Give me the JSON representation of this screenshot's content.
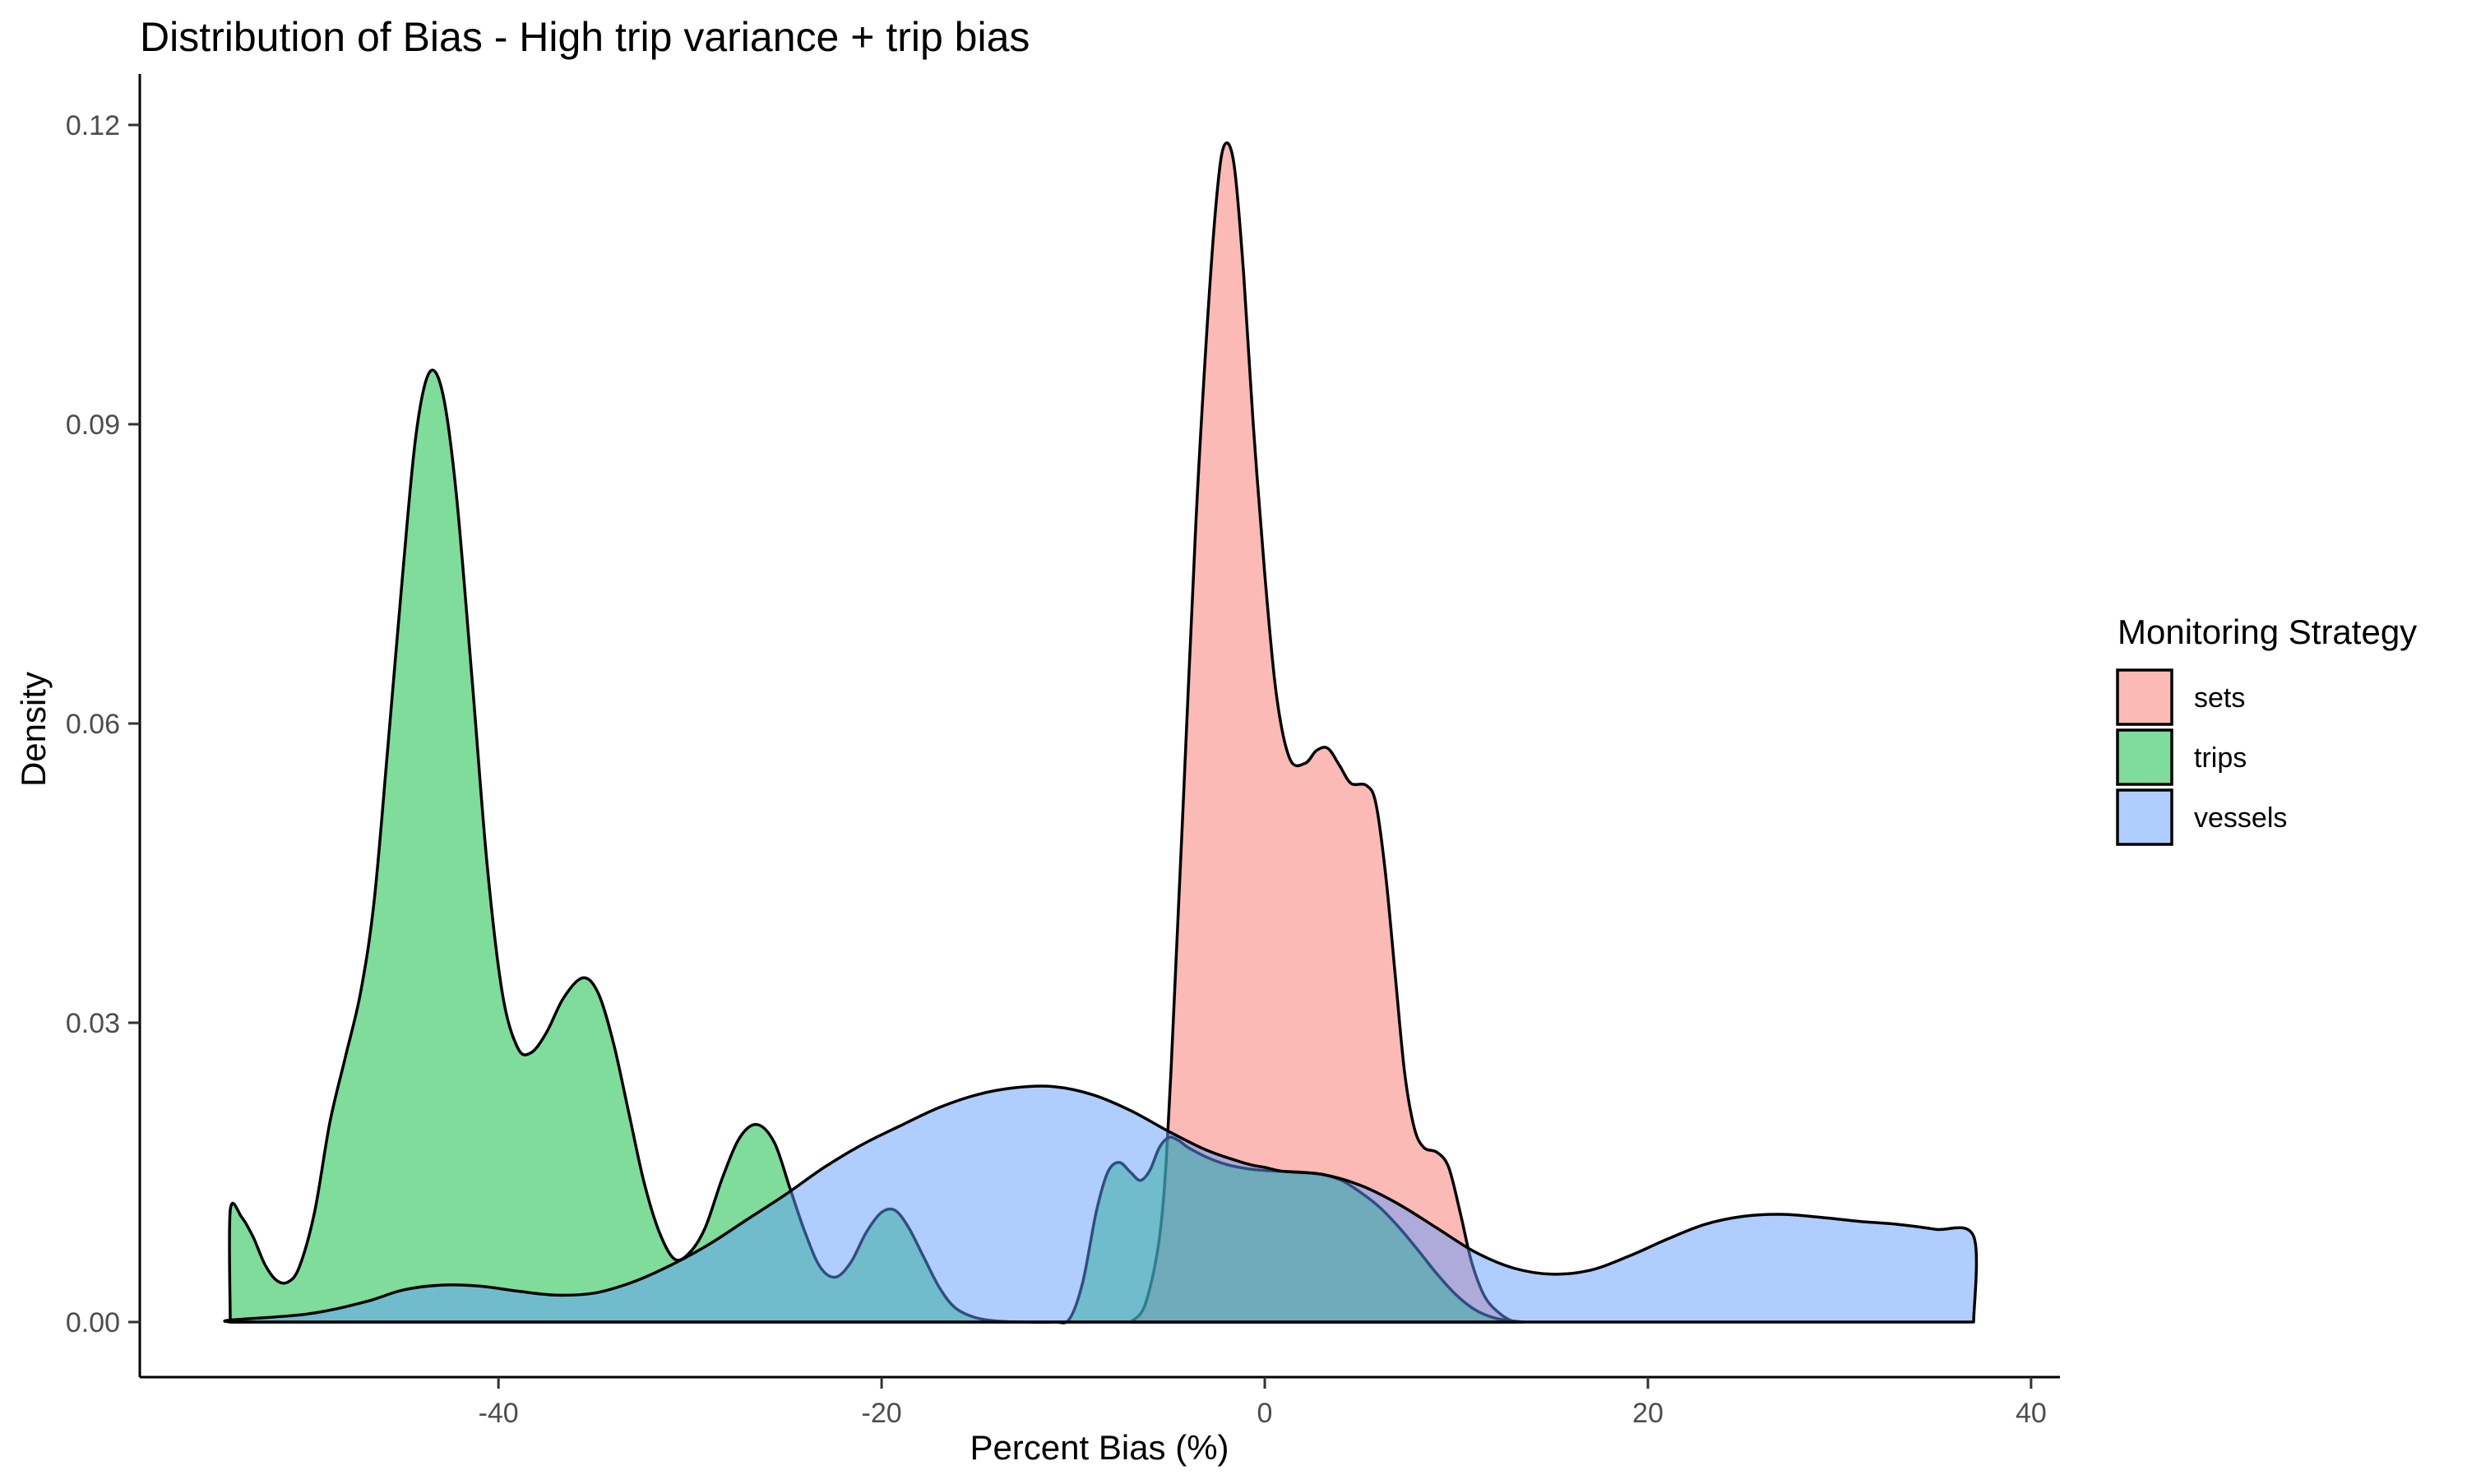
{
  "chart_data": {
    "type": "area",
    "title": "Distribution of Bias - High trip variance + trip bias",
    "xlabel": "Percent Bias (%)",
    "ylabel": "Density",
    "xlim": [
      -54,
      37
    ],
    "ylim": [
      0,
      0.12
    ],
    "x_ticks": [
      -40,
      -20,
      0,
      20,
      40
    ],
    "y_ticks": [
      0.0,
      0.03,
      0.06,
      0.09,
      0.12
    ],
    "x_tick_labels": [
      "-40",
      "-20",
      "0",
      "20",
      "40"
    ],
    "y_tick_labels": [
      "0.00",
      "0.03",
      "0.06",
      "0.09",
      "0.12"
    ],
    "grid": false,
    "legend_title": "Monitoring Strategy",
    "legend_position": "right",
    "series": [
      {
        "name": "sets",
        "color": "#F8766D",
        "points": [
          [
            -7.0,
            0.0
          ],
          [
            -6.2,
            0.002
          ],
          [
            -5.4,
            0.01
          ],
          [
            -4.9,
            0.025
          ],
          [
            -4.3,
            0.05
          ],
          [
            -3.6,
            0.08
          ],
          [
            -3.0,
            0.1
          ],
          [
            -2.5,
            0.113
          ],
          [
            -2.1,
            0.118
          ],
          [
            -1.6,
            0.116
          ],
          [
            -1.1,
            0.105
          ],
          [
            -0.6,
            0.09
          ],
          [
            0,
            0.075
          ],
          [
            0.6,
            0.063
          ],
          [
            1.3,
            0.0565
          ],
          [
            2.1,
            0.056
          ],
          [
            2.7,
            0.0573
          ],
          [
            3.3,
            0.0575
          ],
          [
            3.9,
            0.0558
          ],
          [
            4.5,
            0.054
          ],
          [
            5.3,
            0.0538
          ],
          [
            5.8,
            0.052
          ],
          [
            6.3,
            0.045
          ],
          [
            6.8,
            0.035
          ],
          [
            7.3,
            0.025
          ],
          [
            7.8,
            0.0195
          ],
          [
            8.3,
            0.0175
          ],
          [
            9.0,
            0.017
          ],
          [
            9.6,
            0.0155
          ],
          [
            10.2,
            0.011
          ],
          [
            10.8,
            0.006
          ],
          [
            11.5,
            0.0025
          ],
          [
            12.3,
            0.0008
          ],
          [
            13.0,
            0.0
          ]
        ]
      },
      {
        "name": "trips",
        "color": "#00BA38",
        "points": [
          [
            -54,
            0.0
          ],
          [
            -54,
            0.0112
          ],
          [
            -53.4,
            0.0105
          ],
          [
            -52.8,
            0.0085
          ],
          [
            -52.2,
            0.0058
          ],
          [
            -51.6,
            0.0042
          ],
          [
            -51.0,
            0.004
          ],
          [
            -50.4,
            0.0055
          ],
          [
            -49.6,
            0.011
          ],
          [
            -48.8,
            0.02
          ],
          [
            -48.0,
            0.0265
          ],
          [
            -47.2,
            0.033
          ],
          [
            -46.5,
            0.042
          ],
          [
            -45.8,
            0.057
          ],
          [
            -45.0,
            0.075
          ],
          [
            -44.3,
            0.089
          ],
          [
            -43.6,
            0.0952
          ],
          [
            -42.9,
            0.093
          ],
          [
            -42.2,
            0.083
          ],
          [
            -41.4,
            0.065
          ],
          [
            -40.6,
            0.046
          ],
          [
            -39.8,
            0.033
          ],
          [
            -39.0,
            0.0275
          ],
          [
            -38.3,
            0.027
          ],
          [
            -37.5,
            0.029
          ],
          [
            -36.6,
            0.0325
          ],
          [
            -35.6,
            0.0345
          ],
          [
            -34.8,
            0.033
          ],
          [
            -34.0,
            0.028
          ],
          [
            -33.2,
            0.021
          ],
          [
            -32.4,
            0.014
          ],
          [
            -31.6,
            0.009
          ],
          [
            -30.8,
            0.0063
          ],
          [
            -30.0,
            0.007
          ],
          [
            -29.2,
            0.0095
          ],
          [
            -28.3,
            0.0145
          ],
          [
            -27.4,
            0.0185
          ],
          [
            -26.5,
            0.0198
          ],
          [
            -25.6,
            0.018
          ],
          [
            -24.8,
            0.0135
          ],
          [
            -24.0,
            0.009
          ],
          [
            -23.2,
            0.0055
          ],
          [
            -22.4,
            0.0045
          ],
          [
            -21.6,
            0.006
          ],
          [
            -20.8,
            0.009
          ],
          [
            -20.0,
            0.011
          ],
          [
            -19.3,
            0.0112
          ],
          [
            -18.6,
            0.0095
          ],
          [
            -17.8,
            0.0065
          ],
          [
            -17.0,
            0.0035
          ],
          [
            -16.2,
            0.0015
          ],
          [
            -15.2,
            0.0005
          ],
          [
            -14.0,
            0.0001
          ],
          [
            -12.5,
            0.0
          ],
          [
            -11.0,
            0.0
          ],
          [
            -10.2,
            0.0003
          ],
          [
            -9.5,
            0.004
          ],
          [
            -8.8,
            0.011
          ],
          [
            -8.2,
            0.015
          ],
          [
            -7.6,
            0.016
          ],
          [
            -7.0,
            0.015
          ],
          [
            -6.5,
            0.0142
          ],
          [
            -6.0,
            0.0152
          ],
          [
            -5.5,
            0.0175
          ],
          [
            -5.0,
            0.0185
          ],
          [
            -4.5,
            0.0182
          ],
          [
            -4.0,
            0.0175
          ],
          [
            -3.0,
            0.0165
          ],
          [
            -2.0,
            0.0158
          ],
          [
            -1.0,
            0.0154
          ],
          [
            0,
            0.0152
          ],
          [
            1.0,
            0.0151
          ],
          [
            2.0,
            0.015
          ],
          [
            3.0,
            0.0148
          ],
          [
            4.0,
            0.0142
          ],
          [
            5.0,
            0.013
          ],
          [
            6.0,
            0.0115
          ],
          [
            7.0,
            0.0095
          ],
          [
            8.0,
            0.0072
          ],
          [
            9.0,
            0.0048
          ],
          [
            10.0,
            0.0027
          ],
          [
            11.0,
            0.0012
          ],
          [
            12.0,
            0.0004
          ],
          [
            13.0,
            0.0001
          ],
          [
            13.5,
            0.0
          ]
        ]
      },
      {
        "name": "vessels",
        "color": "#619CFF",
        "points": [
          [
            -54,
            0.0
          ],
          [
            -54,
            0.0002
          ],
          [
            -50,
            0.0008
          ],
          [
            -47,
            0.002
          ],
          [
            -45,
            0.0032
          ],
          [
            -43,
            0.0037
          ],
          [
            -41,
            0.0036
          ],
          [
            -39,
            0.0031
          ],
          [
            -37,
            0.0027
          ],
          [
            -35,
            0.0029
          ],
          [
            -33,
            0.004
          ],
          [
            -31,
            0.0057
          ],
          [
            -29,
            0.0078
          ],
          [
            -27,
            0.0103
          ],
          [
            -25,
            0.0128
          ],
          [
            -23,
            0.0155
          ],
          [
            -21,
            0.0178
          ],
          [
            -19,
            0.0197
          ],
          [
            -17,
            0.0215
          ],
          [
            -15,
            0.0228
          ],
          [
            -13,
            0.0235
          ],
          [
            -11,
            0.0236
          ],
          [
            -9,
            0.0228
          ],
          [
            -7,
            0.0212
          ],
          [
            -5,
            0.0191
          ],
          [
            -3,
            0.0172
          ],
          [
            -1,
            0.0159
          ],
          [
            0,
            0.0155
          ],
          [
            1,
            0.0151
          ],
          [
            3,
            0.0148
          ],
          [
            5,
            0.0137
          ],
          [
            7,
            0.0118
          ],
          [
            9,
            0.0094
          ],
          [
            11,
            0.007
          ],
          [
            13,
            0.0054
          ],
          [
            15,
            0.0048
          ],
          [
            17,
            0.0052
          ],
          [
            19,
            0.0066
          ],
          [
            21,
            0.0083
          ],
          [
            23,
            0.0098
          ],
          [
            25,
            0.0106
          ],
          [
            27,
            0.0108
          ],
          [
            29,
            0.0105
          ],
          [
            31,
            0.0101
          ],
          [
            33,
            0.0098
          ],
          [
            35,
            0.0093
          ],
          [
            37,
            0.0086
          ],
          [
            37,
            0.0
          ]
        ]
      }
    ]
  }
}
